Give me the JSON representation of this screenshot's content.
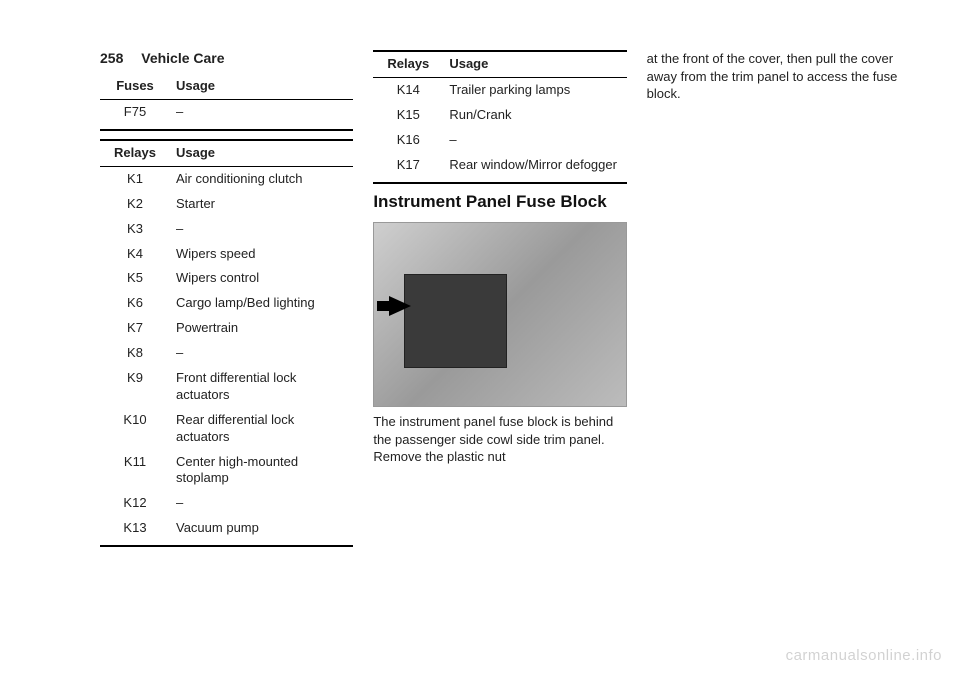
{
  "header": {
    "page_number": "258",
    "section": "Vehicle Care"
  },
  "fuses_table": {
    "columns": [
      "Fuses",
      "Usage"
    ],
    "rows": [
      {
        "id": "F75",
        "usage": "–"
      }
    ]
  },
  "relays_table_1": {
    "columns": [
      "Relays",
      "Usage"
    ],
    "rows": [
      {
        "id": "K1",
        "usage": "Air conditioning clutch"
      },
      {
        "id": "K2",
        "usage": "Starter"
      },
      {
        "id": "K3",
        "usage": "–"
      },
      {
        "id": "K4",
        "usage": "Wipers speed"
      },
      {
        "id": "K5",
        "usage": "Wipers control"
      },
      {
        "id": "K6",
        "usage": "Cargo lamp/Bed lighting"
      },
      {
        "id": "K7",
        "usage": "Powertrain"
      },
      {
        "id": "K8",
        "usage": "–"
      },
      {
        "id": "K9",
        "usage": "Front differential lock actuators"
      },
      {
        "id": "K10",
        "usage": "Rear differential lock actuators"
      },
      {
        "id": "K11",
        "usage": "Center high-mounted stoplamp"
      },
      {
        "id": "K12",
        "usage": "–"
      },
      {
        "id": "K13",
        "usage": "Vacuum pump"
      }
    ]
  },
  "relays_table_2": {
    "columns": [
      "Relays",
      "Usage"
    ],
    "rows": [
      {
        "id": "K14",
        "usage": "Trailer parking lamps"
      },
      {
        "id": "K15",
        "usage": "Run/Crank"
      },
      {
        "id": "K16",
        "usage": "–"
      },
      {
        "id": "K17",
        "usage": "Rear window/Mirror defogger"
      }
    ]
  },
  "section_heading": "Instrument Panel Fuse Block",
  "caption_1": "The instrument panel fuse block is behind the passenger side cowl side trim panel. Remove the plastic nut",
  "caption_2": "at the front of the cover, then pull the cover away from the trim panel to access the fuse block.",
  "watermark": "carmanualsonline.info",
  "colors": {
    "text": "#222222",
    "rule": "#000000",
    "background": "#ffffff",
    "watermark": "rgba(0,0,0,0.18)"
  },
  "typography": {
    "body_fontsize": 13,
    "header_fontsize": 14,
    "heading_fontsize": 17,
    "font_family": "Arial, Helvetica, sans-serif"
  }
}
